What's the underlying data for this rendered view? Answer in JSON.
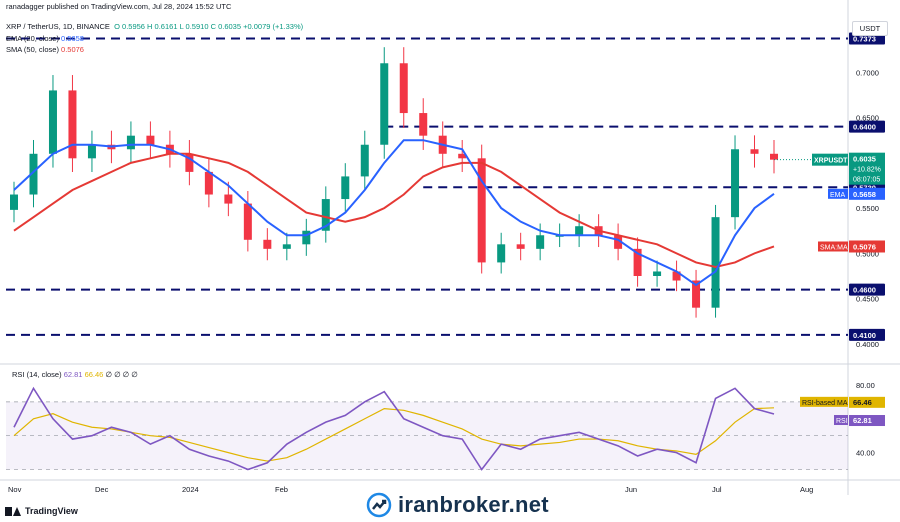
{
  "header": {
    "published": "ranadagger published on TradingView.com, Jul 28, 2024 15:52 UTC",
    "symbol_line": "XRP / TetherUS, 1D, BINANCE",
    "ohlc": "O 0.5956 H 0.6161 L 0.5910 C 0.6035 +0.0079 (+1.33%)",
    "ema_label": "EMA (20, close)",
    "ema_value": "0.5658",
    "sma_label": "SMA (50, close)",
    "sma_value": "0.5076",
    "currency": "USDT"
  },
  "rsi_header": {
    "label": "RSI (14, close)",
    "rsi": "62.81",
    "ma": "66.46",
    "extra": "∅ ∅ ∅ ∅"
  },
  "price_axis": {
    "ticks": [
      "0.7000",
      "0.6500",
      "0.6000",
      "0.5500",
      "0.5000",
      "0.4500",
      "0.4000"
    ],
    "levels": [
      {
        "label": "0.7373",
        "value": 0.7373
      },
      {
        "label": "0.6400",
        "value": 0.64
      },
      {
        "label": "0.5730",
        "value": 0.573
      },
      {
        "label": "0.4600",
        "value": 0.46
      },
      {
        "label": "0.4100",
        "value": 0.41
      }
    ],
    "current_label": "XRPUSDT",
    "current_value": "0.6035",
    "current_change": "+10.82%",
    "countdown": "08:07:05",
    "ema_tag": "EMA",
    "ema_tag_value": "0.5658",
    "sma_tag": "SMA:MA",
    "sma_tag_value": "0.5076"
  },
  "rsi_axis": {
    "ticks": [
      "80.00",
      "40.00"
    ],
    "ma_tag": "RSI-based MA",
    "ma_value": "66.46",
    "rsi_tag": "RSI",
    "rsi_value": "62.81"
  },
  "time_axis": [
    "Nov",
    "Dec",
    "2024",
    "Feb",
    "Jun",
    "Jul",
    "Aug"
  ],
  "footer": {
    "tv_label": "TradingView",
    "watermark": "iranbroker.net"
  },
  "colors": {
    "ema": "#2962ff",
    "sma": "#e53935",
    "up": "#089981",
    "down": "#f23645",
    "rsi": "#7e57c2",
    "rsi_ma": "#e0b500",
    "level": "#0a0f6e"
  },
  "chart_data": {
    "type": "line",
    "title": "XRP / TetherUS, 1D, BINANCE",
    "ylim": [
      0.38,
      0.76
    ],
    "x_dates": [
      "2023-11-01",
      "2023-11-08",
      "2023-11-15",
      "2023-11-22",
      "2023-11-29",
      "2023-12-06",
      "2023-12-13",
      "2023-12-20",
      "2023-12-27",
      "2024-01-03",
      "2024-01-10",
      "2024-01-17",
      "2024-01-24",
      "2024-01-31",
      "2024-02-07",
      "2024-02-14",
      "2024-02-21",
      "2024-02-28",
      "2024-03-06",
      "2024-03-13",
      "2024-03-20",
      "2024-03-27",
      "2024-04-03",
      "2024-04-10",
      "2024-04-17",
      "2024-04-24",
      "2024-05-01",
      "2024-05-08",
      "2024-05-15",
      "2024-05-22",
      "2024-05-29",
      "2024-06-05",
      "2024-06-12",
      "2024-06-19",
      "2024-06-26",
      "2024-07-03",
      "2024-07-10",
      "2024-07-17",
      "2024-07-24",
      "2024-07-28"
    ],
    "series": [
      {
        "name": "XRP / TetherUS",
        "values": [
          0.565,
          0.61,
          0.68,
          0.605,
          0.62,
          0.615,
          0.63,
          0.62,
          0.61,
          0.59,
          0.565,
          0.555,
          0.515,
          0.505,
          0.51,
          0.525,
          0.56,
          0.585,
          0.62,
          0.71,
          0.655,
          0.63,
          0.61,
          0.605,
          0.49,
          0.51,
          0.505,
          0.52,
          0.52,
          0.53,
          0.52,
          0.505,
          0.475,
          0.48,
          0.47,
          0.44,
          0.54,
          0.615,
          0.61,
          0.6035
        ]
      },
      {
        "name": "EMA (20, close)",
        "values": [
          0.57,
          0.59,
          0.61,
          0.62,
          0.62,
          0.618,
          0.62,
          0.62,
          0.615,
          0.605,
          0.59,
          0.575,
          0.555,
          0.535,
          0.52,
          0.52,
          0.53,
          0.545,
          0.57,
          0.6,
          0.625,
          0.625,
          0.62,
          0.615,
          0.58,
          0.55,
          0.535,
          0.525,
          0.52,
          0.52,
          0.52,
          0.515,
          0.5,
          0.49,
          0.48,
          0.465,
          0.48,
          0.52,
          0.55,
          0.5658
        ]
      },
      {
        "name": "SMA (50, close)",
        "values": [
          0.525,
          0.54,
          0.555,
          0.57,
          0.58,
          0.59,
          0.6,
          0.605,
          0.61,
          0.61,
          0.605,
          0.6,
          0.59,
          0.575,
          0.56,
          0.545,
          0.54,
          0.535,
          0.54,
          0.55,
          0.565,
          0.585,
          0.595,
          0.6,
          0.6,
          0.59,
          0.575,
          0.56,
          0.545,
          0.535,
          0.525,
          0.52,
          0.515,
          0.51,
          0.5,
          0.49,
          0.485,
          0.49,
          0.5,
          0.5076
        ]
      }
    ],
    "rsi": {
      "ylim": [
        25,
        90
      ],
      "rsi_values": [
        55,
        78,
        60,
        48,
        50,
        55,
        52,
        45,
        50,
        42,
        38,
        35,
        30,
        34,
        45,
        52,
        58,
        62,
        70,
        76,
        60,
        55,
        50,
        48,
        30,
        45,
        42,
        48,
        50,
        52,
        48,
        44,
        38,
        42,
        40,
        34,
        72,
        78,
        66,
        62.81
      ],
      "ma_values": [
        50,
        60,
        63,
        58,
        55,
        54,
        52,
        50,
        49,
        46,
        43,
        40,
        37,
        35,
        37,
        42,
        48,
        54,
        60,
        66,
        65,
        62,
        58,
        54,
        48,
        45,
        44,
        45,
        46,
        48,
        48,
        47,
        44,
        42,
        41,
        39,
        47,
        58,
        66,
        66.46
      ]
    }
  }
}
